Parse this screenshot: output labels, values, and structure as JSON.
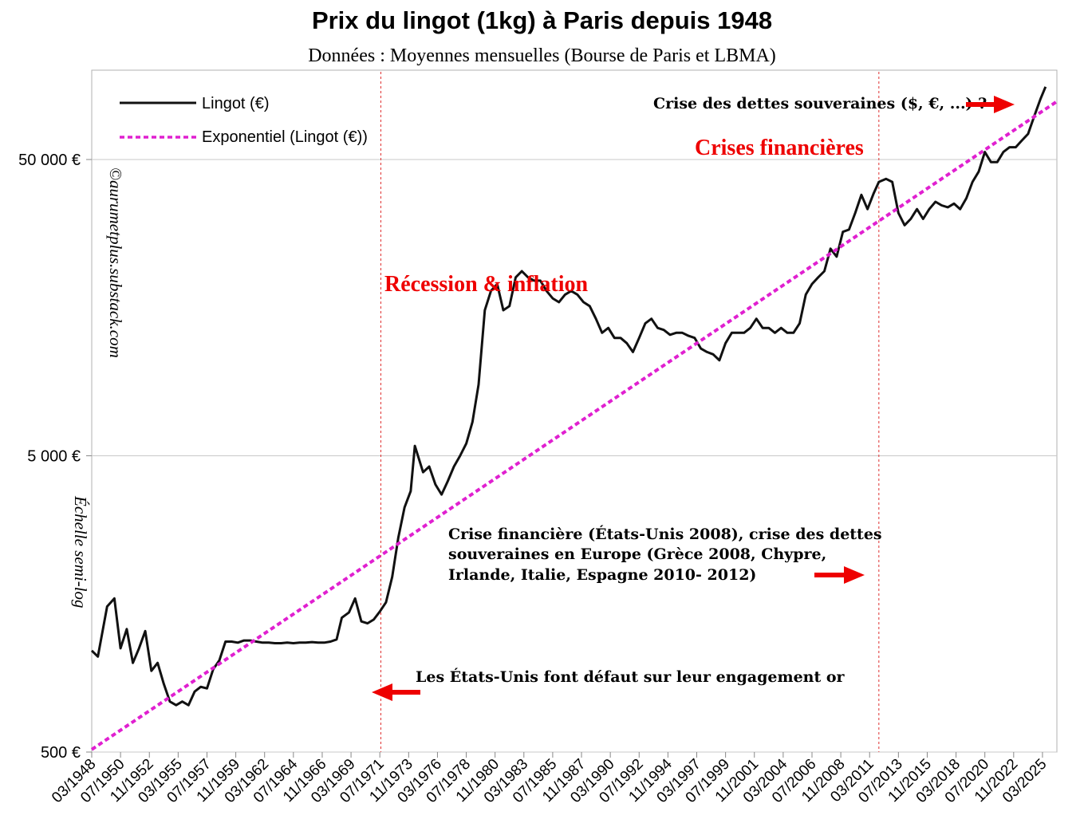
{
  "chart_data": {
    "type": "line",
    "title": "Prix du lingot (1kg) à Paris depuis 1948",
    "subtitle": "Données : Moyennes mensuelles (Bourse de Paris et LBMA)",
    "y_scale": "log",
    "ylim": [
      500,
      100000
    ],
    "y_ticks": [
      500,
      5000,
      50000
    ],
    "y_tick_labels": [
      "500 €",
      "5 000 €",
      "50 000 €"
    ],
    "x_range": [
      "03/1948",
      "05/2026"
    ],
    "x_tick_labels": [
      "03/1948",
      "07/1950",
      "11/1952",
      "03/1955",
      "07/1957",
      "11/1959",
      "03/1962",
      "07/1964",
      "11/1966",
      "03/1969",
      "07/1971",
      "11/1973",
      "03/1976",
      "07/1978",
      "11/1980",
      "03/1983",
      "07/1985",
      "11/1987",
      "03/1990",
      "07/1992",
      "11/1994",
      "03/1997",
      "07/1999",
      "11/2001",
      "03/2004",
      "07/2006",
      "11/2008",
      "03/2011",
      "07/2013",
      "11/2015",
      "03/2018",
      "07/2020",
      "11/2022",
      "03/2025"
    ],
    "grid": "horizontal",
    "legend_position": "top-left",
    "series": [
      {
        "name": "Lingot (€)",
        "color": "#111111",
        "style": "solid",
        "points": [
          [
            "03/1948",
            1100
          ],
          [
            "09/1948",
            1050
          ],
          [
            "06/1949",
            1550
          ],
          [
            "01/1950",
            1650
          ],
          [
            "07/1950",
            1120
          ],
          [
            "01/1951",
            1300
          ],
          [
            "07/1951",
            1000
          ],
          [
            "01/1952",
            1120
          ],
          [
            "07/1952",
            1280
          ],
          [
            "01/1953",
            940
          ],
          [
            "07/1953",
            1000
          ],
          [
            "01/1954",
            850
          ],
          [
            "07/1954",
            740
          ],
          [
            "01/1955",
            720
          ],
          [
            "07/1955",
            740
          ],
          [
            "01/1956",
            720
          ],
          [
            "07/1956",
            800
          ],
          [
            "01/1957",
            830
          ],
          [
            "07/1957",
            820
          ],
          [
            "01/1958",
            950
          ],
          [
            "07/1958",
            1020
          ],
          [
            "01/1959",
            1180
          ],
          [
            "07/1959",
            1180
          ],
          [
            "01/1960",
            1170
          ],
          [
            "07/1960",
            1190
          ],
          [
            "01/1961",
            1190
          ],
          [
            "07/1961",
            1180
          ],
          [
            "01/1962",
            1170
          ],
          [
            "07/1962",
            1170
          ],
          [
            "01/1963",
            1165
          ],
          [
            "07/1963",
            1165
          ],
          [
            "01/1964",
            1170
          ],
          [
            "07/1964",
            1165
          ],
          [
            "01/1965",
            1170
          ],
          [
            "07/1965",
            1170
          ],
          [
            "01/1966",
            1175
          ],
          [
            "07/1966",
            1170
          ],
          [
            "01/1967",
            1170
          ],
          [
            "07/1967",
            1180
          ],
          [
            "01/1968",
            1200
          ],
          [
            "06/1968",
            1420
          ],
          [
            "01/1969",
            1480
          ],
          [
            "07/1969",
            1650
          ],
          [
            "01/1970",
            1380
          ],
          [
            "07/1970",
            1360
          ],
          [
            "01/1971",
            1400
          ],
          [
            "07/1971",
            1490
          ],
          [
            "01/1972",
            1600
          ],
          [
            "07/1972",
            1950
          ],
          [
            "01/1973",
            2650
          ],
          [
            "07/1973",
            3350
          ],
          [
            "01/1974",
            3800
          ],
          [
            "05/1974",
            5400
          ],
          [
            "01/1975",
            4400
          ],
          [
            "07/1975",
            4600
          ],
          [
            "01/1976",
            4000
          ],
          [
            "07/1976",
            3700
          ],
          [
            "01/1977",
            4100
          ],
          [
            "07/1977",
            4600
          ],
          [
            "01/1978",
            5000
          ],
          [
            "07/1978",
            5500
          ],
          [
            "01/1979",
            6500
          ],
          [
            "07/1979",
            8700
          ],
          [
            "01/1980",
            15500
          ],
          [
            "07/1980",
            18000
          ],
          [
            "01/1981",
            19000
          ],
          [
            "07/1981",
            15500
          ],
          [
            "01/1982",
            16000
          ],
          [
            "07/1982",
            20000
          ],
          [
            "01/1983",
            21000
          ],
          [
            "07/1983",
            20000
          ],
          [
            "01/1984",
            19500
          ],
          [
            "07/1984",
            19500
          ],
          [
            "01/1985",
            18000
          ],
          [
            "07/1985",
            17000
          ],
          [
            "01/1986",
            16500
          ],
          [
            "07/1986",
            17500
          ],
          [
            "01/1987",
            18000
          ],
          [
            "07/1987",
            17500
          ],
          [
            "01/1988",
            16500
          ],
          [
            "07/1988",
            16000
          ],
          [
            "01/1989",
            14500
          ],
          [
            "07/1989",
            13000
          ],
          [
            "01/1990",
            13500
          ],
          [
            "07/1990",
            12500
          ],
          [
            "01/1991",
            12500
          ],
          [
            "07/1991",
            12000
          ],
          [
            "01/1992",
            11200
          ],
          [
            "07/1992",
            12500
          ],
          [
            "01/1993",
            14000
          ],
          [
            "07/1993",
            14500
          ],
          [
            "01/1994",
            13500
          ],
          [
            "07/1994",
            13300
          ],
          [
            "01/1995",
            12800
          ],
          [
            "07/1995",
            13000
          ],
          [
            "01/1996",
            13000
          ],
          [
            "07/1996",
            12700
          ],
          [
            "01/1997",
            12500
          ],
          [
            "07/1997",
            11500
          ],
          [
            "01/1998",
            11200
          ],
          [
            "07/1998",
            11000
          ],
          [
            "01/1999",
            10500
          ],
          [
            "07/1999",
            12000
          ],
          [
            "01/2000",
            13000
          ],
          [
            "07/2000",
            13000
          ],
          [
            "01/2001",
            13000
          ],
          [
            "07/2001",
            13500
          ],
          [
            "01/2002",
            14500
          ],
          [
            "07/2002",
            13500
          ],
          [
            "01/2003",
            13500
          ],
          [
            "07/2003",
            13000
          ],
          [
            "01/2004",
            13500
          ],
          [
            "07/2004",
            13000
          ],
          [
            "01/2005",
            13000
          ],
          [
            "07/2005",
            14000
          ],
          [
            "01/2006",
            17500
          ],
          [
            "07/2006",
            19000
          ],
          [
            "01/2007",
            20000
          ],
          [
            "07/2007",
            21000
          ],
          [
            "01/2008",
            25000
          ],
          [
            "07/2008",
            23500
          ],
          [
            "01/2009",
            28500
          ],
          [
            "07/2009",
            29000
          ],
          [
            "01/2010",
            33000
          ],
          [
            "07/2010",
            38000
          ],
          [
            "01/2011",
            34000
          ],
          [
            "07/2011",
            38500
          ],
          [
            "12/2011",
            42000
          ],
          [
            "07/2012",
            43000
          ],
          [
            "01/2013",
            42000
          ],
          [
            "07/2013",
            33000
          ],
          [
            "01/2014",
            30000
          ],
          [
            "07/2014",
            31500
          ],
          [
            "01/2015",
            34000
          ],
          [
            "07/2015",
            31500
          ],
          [
            "01/2016",
            34000
          ],
          [
            "07/2016",
            36000
          ],
          [
            "01/2017",
            35000
          ],
          [
            "07/2017",
            34500
          ],
          [
            "01/2018",
            35500
          ],
          [
            "07/2018",
            34000
          ],
          [
            "01/2019",
            37000
          ],
          [
            "07/2019",
            42000
          ],
          [
            "01/2020",
            45500
          ],
          [
            "07/2020",
            53000
          ],
          [
            "01/2021",
            49000
          ],
          [
            "07/2021",
            49000
          ],
          [
            "01/2022",
            53000
          ],
          [
            "07/2022",
            55000
          ],
          [
            "01/2023",
            55000
          ],
          [
            "07/2023",
            58000
          ],
          [
            "01/2024",
            61000
          ],
          [
            "07/2024",
            70000
          ],
          [
            "01/2025",
            80000
          ],
          [
            "06/2025",
            88000
          ]
        ]
      },
      {
        "name": "Exponentiel (Lingot (€))",
        "color": "#e020d0",
        "style": "dashed",
        "points": [
          [
            "03/1948",
            510
          ],
          [
            "05/2026",
            78500
          ]
        ]
      }
    ],
    "reference_lines": [
      {
        "x": "08/1971",
        "color": "#e03030",
        "style": "dashed"
      },
      {
        "x": "12/2011",
        "color": "#e03030",
        "style": "dashed"
      }
    ],
    "annotations": {
      "recession": "Récession & inflation",
      "crises": "Crises financières",
      "dettes": "Crise des dettes souveraines ($, €, ...) ?",
      "crise2008_line1": "Crise financière (États-Unis 2008), crise des dettes",
      "crise2008_line2": "souveraines en Europe (Grèce 2008, Chypre,",
      "crise2008_line3": "Irlande, Italie, Espagne 2010- 2012)",
      "defaut": "Les États-Unis font défaut sur leur engagement or",
      "watermark": "©aurumetplus.substack.com",
      "scale_note": "Échelle semi-log"
    }
  },
  "colors": {
    "arrow": "#ee0000",
    "grid": "#c8c8c8",
    "frame": "#b0b0b0"
  }
}
